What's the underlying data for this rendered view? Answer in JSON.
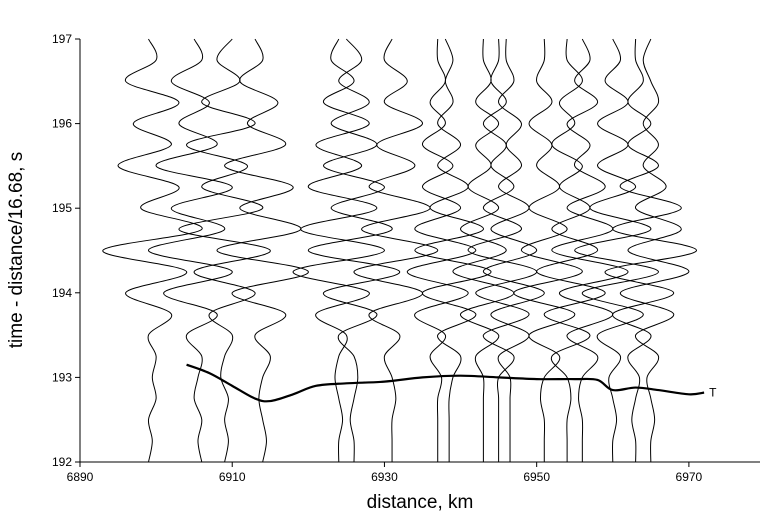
{
  "chart_data": {
    "type": "wiggle",
    "xlabel": "distance, km",
    "ylabel": "time - distance/16.68, s",
    "xlim": [
      6890,
      6980
    ],
    "xticks": [
      6890,
      6910,
      6930,
      6950,
      6970
    ],
    "ylim": [
      192,
      197
    ],
    "yticks": [
      192,
      193,
      194,
      195,
      196,
      197
    ],
    "color": "#000000",
    "y": [
      192,
      192.25,
      192.5,
      192.75,
      193,
      193.25,
      193.5,
      193.75,
      194,
      194.25,
      194.5,
      194.75,
      195,
      195.25,
      195.5,
      195.75,
      196,
      196.25,
      196.5,
      196.75,
      197
    ],
    "traces": [
      {
        "x": [
          6899,
          6899.5,
          6899,
          6900,
          6899.5,
          6900,
          6899,
          6902,
          6896,
          6904,
          6893,
          6906,
          6898,
          6903,
          6895,
          6902,
          6897,
          6903,
          6896,
          6900,
          6899
        ]
      },
      {
        "x": [
          6906,
          6905.5,
          6906,
          6905,
          6905.5,
          6906,
          6904,
          6908,
          6901,
          6910,
          6899,
          6909,
          6902,
          6910,
          6900,
          6908,
          6903,
          6907,
          6902,
          6906,
          6905
        ]
      },
      {
        "x": [
          6909,
          6909.5,
          6909,
          6909.5,
          6908.5,
          6909,
          6910,
          6907,
          6913,
          6905,
          6915,
          6903,
          6914,
          6906,
          6912,
          6904,
          6913,
          6906,
          6911,
          6908,
          6910
        ]
      },
      {
        "x": [
          6914,
          6914.5,
          6914,
          6913.5,
          6914,
          6915,
          6913,
          6917,
          6910,
          6920,
          6908,
          6919,
          6911,
          6918,
          6909,
          6917,
          6912,
          6916,
          6911,
          6914,
          6913
        ]
      },
      {
        "x": [
          6924,
          6924,
          6924.5,
          6924,
          6923.5,
          6924,
          6925,
          6921,
          6928,
          6918,
          6930,
          6919,
          6929,
          6920,
          6927,
          6921,
          6928,
          6922,
          6926,
          6923,
          6924
        ]
      },
      {
        "x": [
          6926,
          6926,
          6925.5,
          6926,
          6926.5,
          6926,
          6924,
          6929,
          6922,
          6932,
          6920,
          6931,
          6923,
          6930,
          6922,
          6929,
          6923,
          6928,
          6924,
          6927,
          6925
        ]
      },
      {
        "x": [
          6931,
          6931,
          6931,
          6931.5,
          6931,
          6930,
          6932,
          6928,
          6935,
          6926,
          6937,
          6927,
          6936,
          6928,
          6934,
          6929,
          6935,
          6930,
          6933,
          6930,
          6931
        ]
      },
      {
        "x": [
          6937,
          6937,
          6937,
          6937,
          6937.5,
          6936,
          6938,
          6934,
          6941,
          6933,
          6942,
          6934,
          6940,
          6935,
          6939,
          6935,
          6938,
          6936,
          6938,
          6937,
          6937
        ]
      },
      {
        "x": [
          6938.5,
          6938.5,
          6938.5,
          6938.5,
          6939,
          6940,
          6937,
          6942,
          6935,
          6944,
          6934,
          6943,
          6936,
          6941,
          6937,
          6940,
          6937,
          6939,
          6938,
          6939,
          6938
        ]
      },
      {
        "x": [
          6943,
          6943,
          6943,
          6943,
          6943,
          6942,
          6945,
          6940,
          6947,
          6939,
          6946,
          6940,
          6945,
          6941,
          6944,
          6942,
          6945,
          6942,
          6944,
          6943,
          6943
        ]
      },
      {
        "x": [
          6945,
          6945,
          6945,
          6945,
          6945,
          6947,
          6943,
          6949,
          6942,
          6950,
          6941,
          6948,
          6943,
          6947,
          6944,
          6946,
          6943,
          6946,
          6944,
          6945,
          6945
        ]
      },
      {
        "x": [
          6946.5,
          6946.5,
          6946.5,
          6946.5,
          6946.5,
          6945,
          6949,
          6944,
          6951,
          6943,
          6950,
          6944,
          6949,
          6945,
          6948,
          6946,
          6948,
          6945,
          6947,
          6946,
          6946
        ]
      },
      {
        "x": [
          6951,
          6951,
          6951,
          6950.5,
          6951,
          6953,
          6949,
          6955,
          6947,
          6956,
          6948,
          6954,
          6949,
          6953,
          6950,
          6952,
          6949,
          6952,
          6950,
          6951,
          6951
        ]
      },
      {
        "x": [
          6954,
          6954,
          6954,
          6954.5,
          6954,
          6952,
          6957,
          6951,
          6959,
          6950,
          6958,
          6952,
          6957,
          6953,
          6956,
          6952,
          6955,
          6953,
          6956,
          6954,
          6954
        ]
      },
      {
        "x": [
          6956,
          6956,
          6956,
          6955.5,
          6956,
          6958,
          6954,
          6960,
          6953,
          6962,
          6952,
          6960,
          6954,
          6959,
          6955,
          6957,
          6954,
          6958,
          6955,
          6957,
          6956
        ]
      },
      {
        "x": [
          6960,
          6960,
          6960.5,
          6960,
          6959.5,
          6961,
          6958,
          6964,
          6956,
          6966,
          6955,
          6965,
          6957,
          6963,
          6958,
          6962,
          6958,
          6962,
          6959,
          6961,
          6960
        ]
      },
      {
        "x": [
          6963,
          6963,
          6962.5,
          6963,
          6963.5,
          6962,
          6965,
          6960,
          6968,
          6959,
          6971,
          6960,
          6969,
          6961,
          6966,
          6962,
          6965,
          6962,
          6964,
          6963,
          6963
        ]
      },
      {
        "x": [
          6965,
          6965,
          6965.5,
          6965,
          6964.5,
          6966,
          6963,
          6968,
          6961,
          6970,
          6962,
          6969,
          6963,
          6967,
          6964,
          6966,
          6964,
          6966,
          6965,
          6964,
          6965
        ]
      }
    ],
    "curve": {
      "name": "T",
      "x": [
        6904,
        6907,
        6910,
        6913,
        6915,
        6918,
        6921,
        6925,
        6930,
        6935,
        6940,
        6945,
        6950,
        6955,
        6958,
        6960,
        6963,
        6966,
        6970,
        6972
      ],
      "y": [
        193.15,
        193.05,
        192.9,
        192.75,
        192.72,
        192.8,
        192.9,
        192.93,
        192.95,
        193.0,
        193.02,
        193.0,
        192.98,
        192.98,
        192.97,
        192.85,
        192.88,
        192.85,
        192.8,
        192.82
      ]
    }
  }
}
